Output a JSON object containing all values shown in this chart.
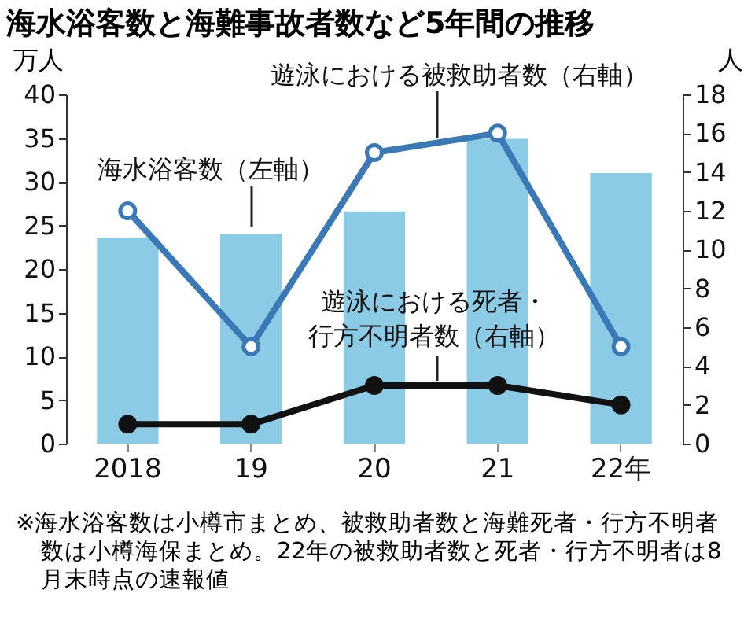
{
  "chart_data": {
    "type": "bar",
    "title": "海水浴客数と海難事故者数など5年間の推移",
    "ylabel": "万人",
    "y2label": "人",
    "categories": [
      "2018",
      "19",
      "20",
      "21",
      "22年"
    ],
    "series": [
      {
        "name": "海水浴客数（左軸）",
        "color": "#8ccbe6",
        "values": [
          23.6,
          24.0,
          26.6,
          34.9,
          31.0
        ]
      },
      {
        "name": "遊泳における被救助者数（右軸）",
        "type": "line",
        "axis": "y2",
        "color": "#3a78b6",
        "values": [
          12,
          5,
          15,
          16,
          5
        ]
      },
      {
        "name": "遊泳における死者・行方不明者数（右軸）",
        "type": "line",
        "axis": "y2",
        "color": "#111111",
        "values": [
          1,
          1,
          3,
          3,
          2
        ]
      }
    ],
    "ylim": [
      0,
      40
    ],
    "yticks": [
      0,
      5,
      10,
      15,
      20,
      25,
      30,
      35,
      40
    ],
    "y2lim": [
      0,
      18
    ],
    "y2ticks": [
      0,
      2,
      4,
      6,
      8,
      10,
      12,
      14,
      16,
      18
    ],
    "marker": "circle",
    "grid": false,
    "annotations": [
      "※海水浴客数は小樽市まとめ、被救助者数と海難死者・行方不明者数は小樽海保まとめ。22年の被救助者数と死者・行方不明者は8月末時点の速報値"
    ]
  }
}
